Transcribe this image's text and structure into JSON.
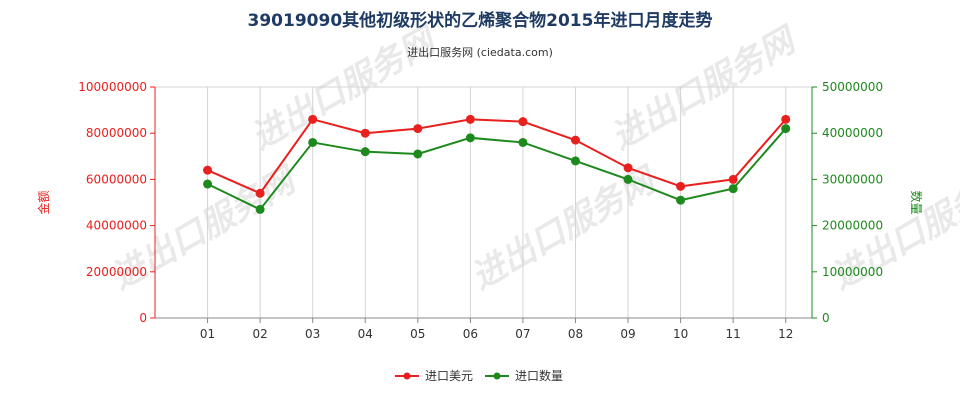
{
  "title": "39019090其他初级形状的乙烯聚合物2015年进口月度走势",
  "subtitle": "进出口服务网 (ciedata.com)",
  "watermark": "进出口服务网",
  "chart_data": {
    "type": "line",
    "categories": [
      "01",
      "02",
      "03",
      "04",
      "05",
      "06",
      "07",
      "08",
      "09",
      "10",
      "11",
      "12"
    ],
    "y_left": {
      "label": "金额",
      "range": [
        0,
        100000000
      ],
      "ticks": [
        "0",
        "20000000",
        "40000000",
        "60000000",
        "80000000",
        "100000000"
      ],
      "color": "#e8201e"
    },
    "y_right": {
      "label": "数量",
      "range": [
        0,
        50000000
      ],
      "ticks": [
        "0",
        "10000000",
        "20000000",
        "30000000",
        "40000000",
        "50000000"
      ],
      "color": "#1e8a1e"
    },
    "grid": "vertical",
    "legend_position": "bottom-center",
    "series": [
      {
        "name": "进口美元",
        "axis": "left",
        "color": "#e8201e",
        "values": [
          64000000,
          54000000,
          86000000,
          80000000,
          82000000,
          86000000,
          85000000,
          77000000,
          65000000,
          57000000,
          60000000,
          86000000
        ]
      },
      {
        "name": "进口数量",
        "axis": "right",
        "color": "#1e8a1e",
        "values": [
          29000000,
          23500000,
          38000000,
          36000000,
          35500000,
          39000000,
          38000000,
          34000000,
          30000000,
          25500000,
          28000000,
          41000000
        ]
      }
    ]
  }
}
